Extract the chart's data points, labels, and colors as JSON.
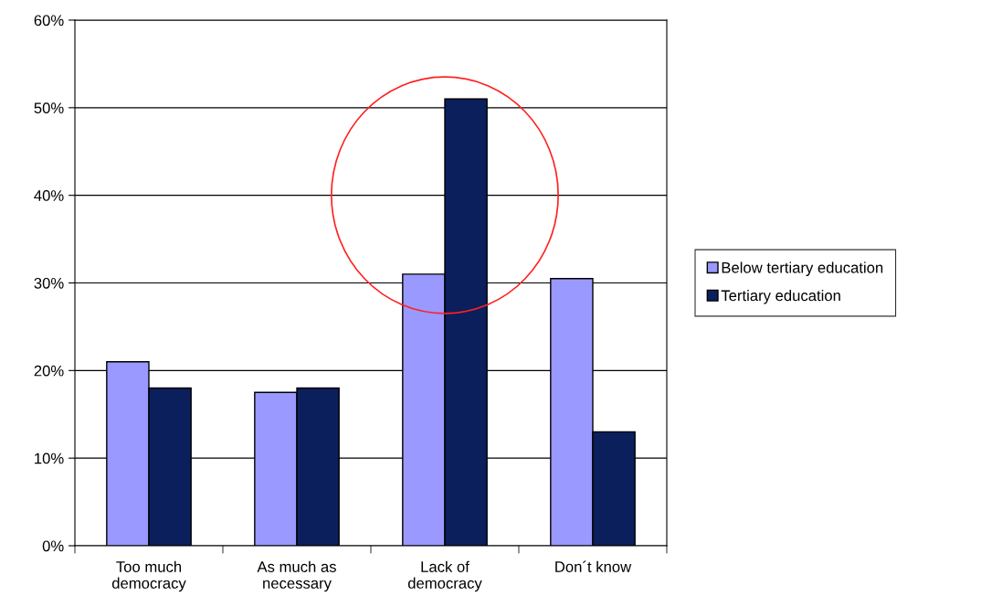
{
  "chart_data": {
    "type": "bar",
    "categories": [
      "Too much\ndemocracy",
      "As much as\nnecessary",
      "Lack of\ndemocracy",
      "Don´t know"
    ],
    "series": [
      {
        "name": "Below tertiary education",
        "color": "#9999ff",
        "values": [
          21,
          17.5,
          31,
          30.5
        ]
      },
      {
        "name": "Tertiary education",
        "color": "#0a1f5c",
        "values": [
          18,
          18,
          51,
          13
        ]
      }
    ],
    "ylim": [
      0,
      60
    ],
    "yticks": [
      {
        "value": 0,
        "label": "0%"
      },
      {
        "value": 10,
        "label": "10%"
      },
      {
        "value": 20,
        "label": "20%"
      },
      {
        "value": 30,
        "label": "30%"
      },
      {
        "value": 40,
        "label": "40%"
      },
      {
        "value": 50,
        "label": "50%"
      },
      {
        "value": 60,
        "label": "60%"
      }
    ],
    "grid": "y",
    "legend": "right"
  }
}
